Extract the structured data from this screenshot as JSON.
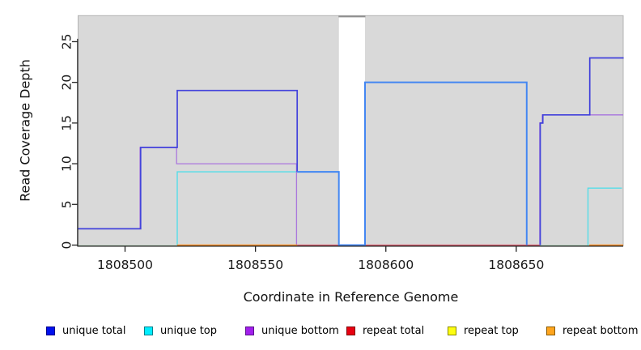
{
  "chart_data": {
    "type": "line",
    "subtype": "step-coverage-plot",
    "title": "",
    "xlabel": "Coordinate in Reference Genome",
    "ylabel": "Read Coverage Depth",
    "xlim": [
      1808482,
      1808691
    ],
    "ylim": [
      0,
      28.2
    ],
    "xticks": [
      1808500,
      1808550,
      1808600,
      1808650
    ],
    "yticks": [
      0,
      5,
      10,
      15,
      20,
      25
    ],
    "grid": false,
    "legend_position": "bottom",
    "axis_color": "#262626",
    "tick_label_color": "#1a1a1a",
    "panel": {
      "fill": "#d9d9d9",
      "border": "#b3b3b3",
      "no_data_gap": {
        "x0": 1808582,
        "x1": 1808592,
        "fill": "#ffffff",
        "cap_color": "#8f8f8f"
      }
    },
    "series": [
      {
        "name": "unique total",
        "legend_color": "#0010ee",
        "legend_border": "#000089",
        "steps": [
          [
            1808482,
            2
          ],
          [
            1808506,
            12
          ],
          [
            1808520,
            19
          ],
          [
            1808566,
            9
          ],
          [
            1808582,
            0
          ],
          [
            1808592,
            20
          ],
          [
            1808654,
            0
          ],
          [
            1808659,
            15
          ],
          [
            1808660,
            16
          ],
          [
            1808678,
            23
          ],
          [
            1808691,
            23
          ]
        ]
      },
      {
        "name": "unique top",
        "legend_color": "#00eeff",
        "legend_border": "#007f8c",
        "steps": [
          [
            1808482,
            0
          ],
          [
            1808520,
            9
          ],
          [
            1808582,
            0
          ],
          [
            1808678,
            7
          ],
          [
            1808691,
            7
          ]
        ]
      },
      {
        "name": "unique bottom",
        "legend_color": "#a21fec",
        "legend_border": "#59108a",
        "steps": [
          [
            1808482,
            2
          ],
          [
            1808506,
            12
          ],
          [
            1808520,
            10
          ],
          [
            1808566,
            0
          ],
          [
            1808659,
            15
          ],
          [
            1808660,
            16
          ],
          [
            1808691,
            16
          ]
        ]
      },
      {
        "name": "repeat total",
        "legend_color": "#e80011",
        "legend_border": "#7e0008",
        "steps": [
          [
            1808482,
            0
          ],
          [
            1808691,
            0
          ]
        ]
      },
      {
        "name": "repeat top",
        "legend_color": "#fdfd11",
        "legend_border": "#8a8a00",
        "steps": [
          [
            1808482,
            0
          ],
          [
            1808691,
            0
          ]
        ]
      },
      {
        "name": "repeat bottom",
        "legend_color": "#ffa51e",
        "legend_border": "#8a5a00",
        "steps": [
          [
            1808482,
            0
          ],
          [
            1808691,
            0
          ]
        ]
      }
    ],
    "render": {
      "polylines": [
        {
          "part": "unique-top-left",
          "color": "#55dde8",
          "width": 1.4,
          "dx": 0,
          "dy": 0,
          "points": [
            [
              1808520,
              0
            ],
            [
              1808520,
              9
            ],
            [
              1808582,
              9
            ]
          ]
        },
        {
          "part": "unique-top-right",
          "color": "#55dde8",
          "width": 1.4,
          "dx": -1.6,
          "dy": 0,
          "points": [
            [
              1808678,
              0
            ],
            [
              1808678,
              7
            ],
            [
              1808691,
              7
            ]
          ]
        },
        {
          "part": "unique-bottom-left",
          "color": "#aa77dd",
          "width": 1.3,
          "dx": -0.8,
          "dy": 0,
          "points": [
            [
              1808482,
              2
            ],
            [
              1808506,
              2
            ],
            [
              1808506,
              12
            ],
            [
              1808520,
              12
            ],
            [
              1808520,
              10
            ],
            [
              1808566,
              10
            ],
            [
              1808566,
              0
            ]
          ]
        },
        {
          "part": "unique-bottom-right",
          "color": "#a873de",
          "width": 1.3,
          "dx": 0,
          "dy": 0,
          "points": [
            [
              1808659,
              0
            ],
            [
              1808659,
              15
            ],
            [
              1808660,
              15
            ],
            [
              1808660,
              16
            ],
            [
              1808691,
              16
            ]
          ]
        },
        {
          "part": "baseline-blend-left",
          "color": "#a8d9ad",
          "width": 1.2,
          "dx": 0,
          "dy": 0.9,
          "points": [
            [
              1808482,
              0
            ],
            [
              1808520,
              0
            ]
          ]
        },
        {
          "part": "baseline-orange-left",
          "color": "#ff8c1a",
          "width": 1.5,
          "dx": 0,
          "dy": 0,
          "points": [
            [
              1808520,
              0
            ],
            [
              1808566,
              0
            ]
          ]
        },
        {
          "part": "baseline-red-mid",
          "color": "#dd5468",
          "width": 1.3,
          "dx": 0,
          "dy": 0,
          "points": [
            [
              1808566,
              0
            ],
            [
              1808582,
              0
            ]
          ]
        },
        {
          "part": "baseline-red-right",
          "color": "#dd5468",
          "width": 1.3,
          "dx": 0,
          "dy": 0,
          "points": [
            [
              1808592,
              0
            ],
            [
              1808659,
              0
            ]
          ]
        },
        {
          "part": "baseline-blend-right",
          "color": "#7bcb8f",
          "width": 1.3,
          "dx": 0,
          "dy": 0.9,
          "points": [
            [
              1808659,
              0
            ],
            [
              1808678,
              0
            ]
          ]
        },
        {
          "part": "baseline-orange-right",
          "color": "#ff8c1a",
          "width": 1.5,
          "dx": 0,
          "dy": 0,
          "points": [
            [
              1808678,
              0
            ],
            [
              1808691,
              0
            ]
          ]
        },
        {
          "part": "unique-total-left",
          "color": "#4343dc",
          "width": 1.7,
          "dx": 0,
          "dy": 0,
          "points": [
            [
              1808482,
              2
            ],
            [
              1808506,
              2
            ],
            [
              1808506,
              12
            ],
            [
              1808520,
              12
            ],
            [
              1808520,
              19
            ],
            [
              1808566,
              19
            ],
            [
              1808566,
              9
            ]
          ]
        },
        {
          "part": "unique-total-mid",
          "color": "#4487f2",
          "width": 2,
          "dx": 0,
          "dy": 0,
          "points": [
            [
              1808566,
              9
            ],
            [
              1808582,
              9
            ],
            [
              1808582,
              0
            ],
            [
              1808592,
              0
            ],
            [
              1808592,
              20
            ],
            [
              1808654,
              20
            ],
            [
              1808654,
              0
            ]
          ]
        },
        {
          "part": "unique-total-right",
          "color": "#4140db",
          "width": 1.7,
          "dx": 0.6,
          "dy": 0,
          "points": [
            [
              1808659,
              0
            ],
            [
              1808659,
              15
            ],
            [
              1808660,
              15
            ],
            [
              1808660,
              16
            ],
            [
              1808678,
              16
            ],
            [
              1808678,
              23
            ],
            [
              1808691,
              23
            ]
          ]
        }
      ]
    }
  }
}
